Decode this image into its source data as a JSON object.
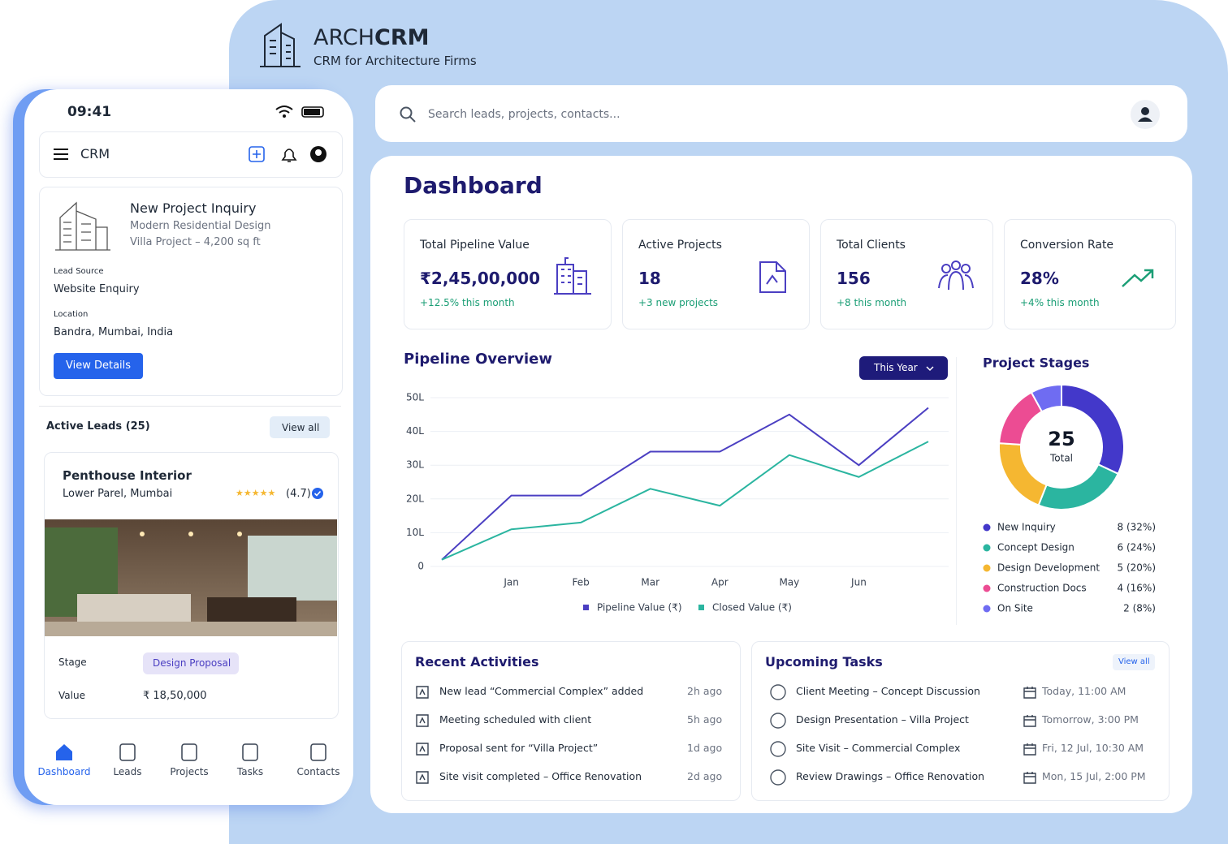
{
  "brand": {
    "name_light": "ARCH",
    "name_bold": "CRM",
    "tagline": "CRM for Architecture Firms"
  },
  "search": {
    "placeholder": "Search leads, projects, contacts..."
  },
  "phone": {
    "time": "09:41",
    "app_title": "CRM",
    "inquiry": {
      "title": "New Project Inquiry",
      "subtitle": "Modern Residential Design",
      "detail": "Villa Project – 4,200 sq ft",
      "lead_source_label": "Lead Source",
      "lead_source": "Website Enquiry",
      "location_label": "Location",
      "location": "Bandra, Mumbai, India",
      "button": "View Details"
    },
    "active_leads": {
      "title": "Active Leads (25)",
      "view_all": "View all"
    },
    "lead": {
      "title": "Penthouse Interior",
      "location": "Lower Parel, Mumbai",
      "rating": "(4.7)",
      "stage_label": "Stage",
      "stage": "Design Proposal",
      "value_label": "Value",
      "value": "₹ 18,50,000"
    },
    "nav": [
      "Dashboard",
      "Leads",
      "Projects",
      "Tasks",
      "Contacts"
    ]
  },
  "dashboard": {
    "title": "Dashboard",
    "kpis": [
      {
        "label": "Total Pipeline Value",
        "value": "₹2,45,00,000",
        "note": "+12.5% this month"
      },
      {
        "label": "Active Projects",
        "value": "18",
        "note": "+3 new projects"
      },
      {
        "label": "Total Clients",
        "value": "156",
        "note": "+8 this month"
      },
      {
        "label": "Conversion Rate",
        "value": "28%",
        "note": "+4% this month"
      }
    ]
  },
  "chart_data": [
    {
      "type": "line",
      "title": "Pipeline Overview",
      "filter": "This Year",
      "categories": [
        null,
        "Jan",
        "Feb",
        "Mar",
        "Apr",
        "May",
        "Jun",
        null
      ],
      "series": [
        {
          "name": "Pipeline Value (₹)",
          "color": "#4b3fc2",
          "values": [
            2,
            21,
            21,
            34,
            34,
            45,
            30,
            47
          ]
        },
        {
          "name": "Closed Value (₹)",
          "color": "#2bb5a0",
          "values": [
            2,
            11,
            13,
            23,
            18,
            33,
            26.5,
            37
          ]
        }
      ],
      "ylim": [
        0,
        50
      ],
      "yticks": [
        0,
        {
          "value": 10,
          "label": "10L"
        },
        {
          "value": 20,
          "label": "20L"
        },
        {
          "value": 30,
          "label": "30L"
        },
        {
          "value": 40,
          "label": "40L"
        },
        {
          "value": 50,
          "label": "50L"
        }
      ],
      "grid": true
    },
    {
      "type": "pie",
      "title": "Project Stages",
      "total": 25,
      "total_label": "Total",
      "categories": [
        "New Inquiry",
        "Concept Design",
        "Design Development",
        "Construction Docs",
        "On Site"
      ],
      "values": [
        8,
        6,
        5,
        4,
        2
      ],
      "value_labels": [
        "8 (32%)",
        "6 (24%)",
        "5 (20%)",
        "4 (16%)",
        "2 (8%)"
      ],
      "colors": [
        "#4338ca",
        "#2bb5a0",
        "#f5b731",
        "#ec4c93",
        "#6f6cf2"
      ],
      "donut": true
    }
  ],
  "activities": {
    "title": "Recent Activities",
    "items": [
      {
        "text": "New lead “Commercial Complex” added",
        "time": "2h ago"
      },
      {
        "text": "Meeting scheduled with client",
        "time": "5h ago"
      },
      {
        "text": "Proposal sent for “Villa Project”",
        "time": "1d ago"
      },
      {
        "text": "Site visit completed – Office Renovation",
        "time": "2d ago"
      }
    ]
  },
  "tasks": {
    "title": "Upcoming Tasks",
    "view_all": "View all",
    "items": [
      {
        "text": "Client Meeting – Concept Discussion",
        "time": "Today, 11:00 AM"
      },
      {
        "text": "Design Presentation – Villa Project",
        "time": "Tomorrow, 3:00 PM"
      },
      {
        "text": "Site Visit – Commercial Complex",
        "time": "Fri, 12 Jul, 10:30 AM"
      },
      {
        "text": "Review Drawings – Office Renovation",
        "time": "Mon, 15 Jul,  2:00 PM"
      }
    ]
  }
}
